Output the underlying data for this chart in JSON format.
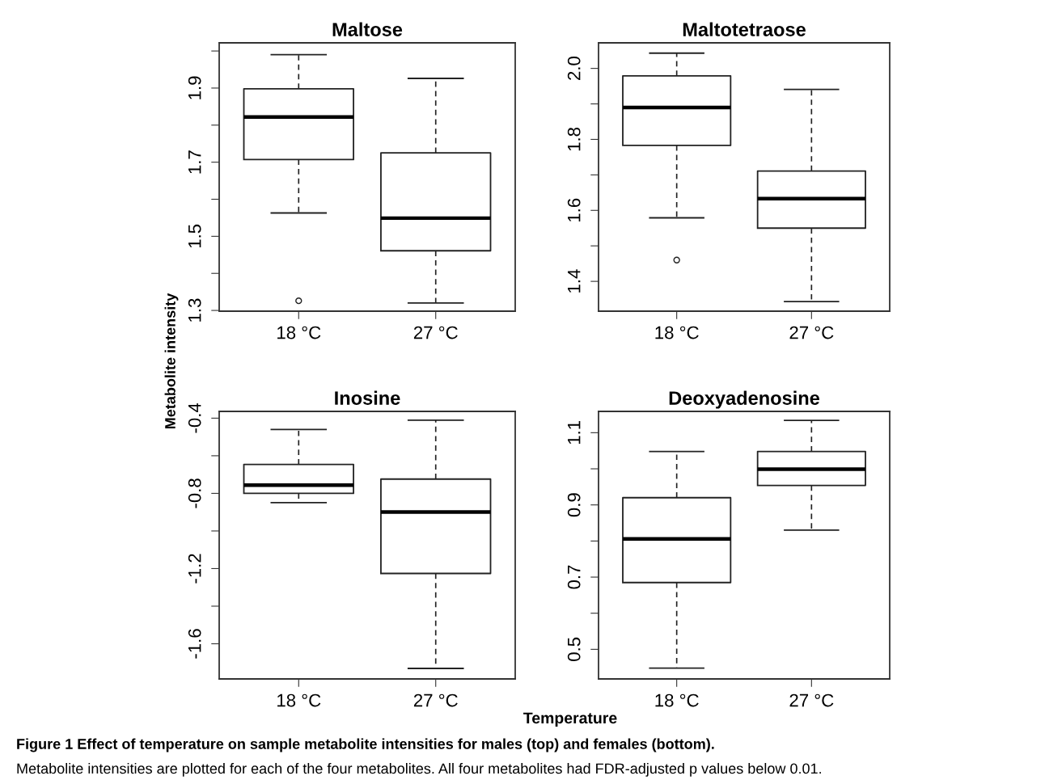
{
  "chart_data": [
    {
      "type": "box",
      "title": "Maltose",
      "ylabel": "Metabolite intensity",
      "categories": [
        "18 °C",
        "27 °C"
      ],
      "ylim": [
        1.298,
        2.022
      ],
      "yticks": [
        1.3,
        {
          "value": 1.4,
          "label": null
        },
        1.5,
        {
          "value": 1.6,
          "label": null
        },
        1.7,
        {
          "value": 1.8,
          "label": null
        },
        1.9,
        {
          "value": 2.0,
          "label": null
        }
      ],
      "grid": false,
      "boxes": [
        {
          "low": 1.563,
          "q1": 1.707,
          "median": 1.822,
          "q3": 1.898,
          "high": 1.99,
          "outliers": [
            1.326
          ]
        },
        {
          "low": 1.32,
          "q1": 1.461,
          "median": 1.549,
          "q3": 1.725,
          "high": 1.926
        }
      ]
    },
    {
      "type": "box",
      "title": "Maltotetraose",
      "categories": [
        "18 °C",
        "27 °C"
      ],
      "ylim": [
        1.316,
        2.072
      ],
      "yticks": [
        1.4,
        {
          "value": 1.5,
          "label": null
        },
        1.6,
        {
          "value": 1.7,
          "label": null
        },
        1.8,
        {
          "value": 1.9,
          "label": null
        },
        {
          "value": 2.0,
          "label": "2.0"
        }
      ],
      "grid": false,
      "boxes": [
        {
          "low": 1.579,
          "q1": 1.783,
          "median": 1.89,
          "q3": 1.979,
          "high": 2.043,
          "outliers": [
            1.46
          ]
        },
        {
          "low": 1.343,
          "q1": 1.55,
          "median": 1.633,
          "q3": 1.711,
          "high": 1.941
        }
      ]
    },
    {
      "type": "box",
      "title": "Inosine",
      "categories": [
        "18 °C",
        "27 °C"
      ],
      "ylim": [
        -1.787,
        -0.364
      ],
      "yticks": [
        -1.6,
        {
          "value": -1.4,
          "label": null
        },
        -1.2,
        {
          "value": -1.0,
          "label": null
        },
        -0.8,
        {
          "value": -0.6,
          "label": null
        },
        -0.4
      ],
      "grid": false,
      "boxes": [
        {
          "low": -0.849,
          "q1": -0.8,
          "median": -0.756,
          "q3": -0.646,
          "high": -0.46
        },
        {
          "low": -1.731,
          "q1": -1.226,
          "median": -0.899,
          "q3": -0.724,
          "high": -0.411
        }
      ]
    },
    {
      "type": "box",
      "title": "Deoxyadenosine",
      "xlabel": "Temperature",
      "categories": [
        "18 °C",
        "27 °C"
      ],
      "ylim": [
        0.418,
        1.159
      ],
      "yticks": [
        0.5,
        {
          "value": 0.6,
          "label": null
        },
        0.7,
        {
          "value": 0.8,
          "label": null
        },
        0.9,
        {
          "value": 1.0,
          "label": null
        },
        1.1
      ],
      "grid": false,
      "boxes": [
        {
          "low": 0.448,
          "q1": 0.685,
          "median": 0.806,
          "q3": 0.92,
          "high": 1.048
        },
        {
          "low": 0.83,
          "q1": 0.954,
          "median": 0.999,
          "q3": 1.048,
          "high": 1.134
        }
      ],
      "annotations": [
        "Figure 1 Effect of temperature on sample metabolite intensities for males (top) and females (bottom).",
        "Metabolite intensities are plotted for each of the four metabolites. All four metabolites had FDR-adjusted p values below 0.01."
      ]
    }
  ]
}
